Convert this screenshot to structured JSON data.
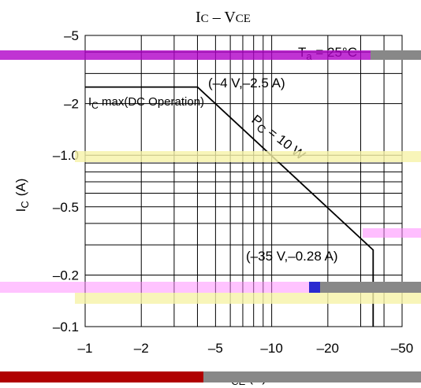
{
  "chart_data": {
    "type": "line",
    "title_main": "I",
    "title_main_sub": "C",
    "title_sep": " – ",
    "title_main2": "V",
    "title_main2_sub": "CE",
    "xlabel": "V",
    "xlabel_sub": "CE",
    "xlabel_unit": "(V)",
    "ylabel": "I",
    "ylabel_sub": "C",
    "ylabel_unit": "(A)",
    "x_scale": "log",
    "y_scale": "log",
    "xlim": [
      -1,
      -50
    ],
    "ylim": [
      -0.1,
      -5
    ],
    "x_ticks": [
      {
        "value": -1,
        "label": "–1"
      },
      {
        "value": -2,
        "label": "–2"
      },
      {
        "value": -5,
        "label": "–5"
      },
      {
        "value": -10,
        "label": "–10"
      },
      {
        "value": -20,
        "label": "–20"
      },
      {
        "value": -50,
        "label": "–50"
      }
    ],
    "y_ticks": [
      {
        "value": -0.1,
        "label": "–0.1"
      },
      {
        "value": -0.2,
        "label": "–0.2"
      },
      {
        "value": -0.5,
        "label": "–0.5"
      },
      {
        "value": -1.0,
        "label": "–1.0"
      },
      {
        "value": -2,
        "label": "–2"
      },
      {
        "value": -5,
        "label": "–5"
      }
    ],
    "x_grid": [
      -1,
      -2,
      -3,
      -4,
      -5,
      -6,
      -7,
      -8,
      -9,
      -10,
      -20,
      -30,
      -40,
      -50
    ],
    "y_grid": [
      -0.1,
      -0.2,
      -0.3,
      -0.4,
      -0.5,
      -0.6,
      -0.7,
      -0.8,
      -0.9,
      -1.0,
      -2,
      -3,
      -4,
      -5
    ],
    "grid": true,
    "series": [
      {
        "x": [
          -1,
          -4,
          -35,
          -35
        ],
        "y": [
          -2.5,
          -2.5,
          -0.28,
          -0.1
        ]
      }
    ],
    "annotations": [
      {
        "text": "T",
        "sub": "a",
        "tail": " = 25°C"
      },
      {
        "text": "(–4 V,–2.5 A)"
      },
      {
        "text": "I",
        "sub": "C",
        "tail": " max(DC Operation)"
      },
      {
        "text": "P",
        "sub": "C",
        "tail": " = 10 W"
      },
      {
        "text": "(–35 V,–0.28 A)"
      }
    ]
  }
}
